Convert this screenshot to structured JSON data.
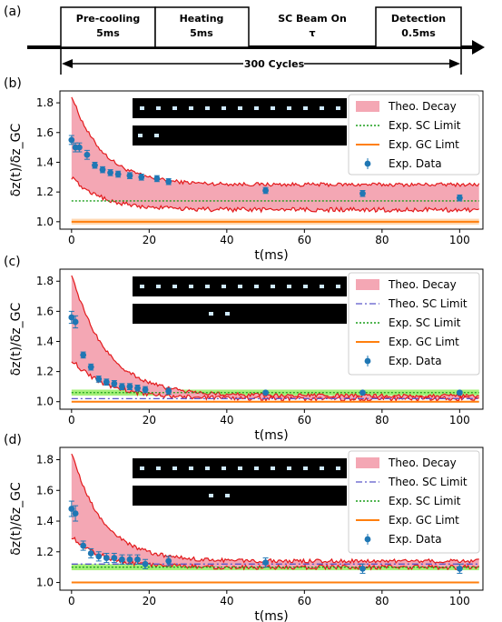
{
  "timeline": {
    "panel_label": "(a)",
    "stages": [
      {
        "line1": "Pre-cooling",
        "line2": "5ms"
      },
      {
        "line1": "Heating",
        "line2": "5ms"
      },
      {
        "line1": "SC Beam On",
        "line2": "τ"
      },
      {
        "line1": "Detection",
        "line2": "0.5ms"
      }
    ],
    "cycles_label": "300 Cycles"
  },
  "chart_data": [
    {
      "type": "scatter",
      "panel_label": "(b)",
      "xlabel": "t(ms)",
      "ylabel": "δz(t)/δz_GC",
      "xlim": [
        -3,
        106
      ],
      "ylim": [
        0.95,
        1.88
      ],
      "xticks": [
        0,
        20,
        40,
        60,
        80,
        100
      ],
      "yticks": [
        1.0,
        1.2,
        1.4,
        1.6,
        1.8
      ],
      "legend": [
        "Theo. Decay",
        "Exp. SC Limit",
        "Exp. GC Limt",
        "Exp. Data"
      ],
      "legend_position": "top-right",
      "data": {
        "x": [
          0,
          1,
          2,
          4,
          6,
          8,
          10,
          12,
          15,
          18,
          22,
          25,
          50,
          75,
          100
        ],
        "y": [
          1.55,
          1.5,
          1.5,
          1.45,
          1.38,
          1.35,
          1.33,
          1.32,
          1.31,
          1.3,
          1.29,
          1.27,
          1.21,
          1.19,
          1.16
        ],
        "err": [
          0.03,
          0.03,
          0.03,
          0.03,
          0.02,
          0.02,
          0.02,
          0.02,
          0.02,
          0.02,
          0.02,
          0.02,
          0.02,
          0.02,
          0.02
        ]
      },
      "decay_band": {
        "upper_start": 1.85,
        "upper_end": 1.25,
        "lower_start": 1.3,
        "lower_end": 1.08,
        "tau": 8
      },
      "sc_limit_exp": 1.14,
      "gc_limit_exp": 1.0,
      "gc_band": [
        0.98,
        1.02
      ]
    },
    {
      "type": "scatter",
      "panel_label": "(c)",
      "xlabel": "t(ms)",
      "ylabel": "δz(t)/δz_GC",
      "xlim": [
        -3,
        106
      ],
      "ylim": [
        0.95,
        1.88
      ],
      "xticks": [
        0,
        20,
        40,
        60,
        80,
        100
      ],
      "yticks": [
        1.0,
        1.2,
        1.4,
        1.6,
        1.8
      ],
      "legend": [
        "Theo. Decay",
        "Theo. SC Limit",
        "Exp. SC Limit",
        "Exp. GC Limt",
        "Exp. Data"
      ],
      "legend_position": "top-right",
      "data": {
        "x": [
          0,
          1,
          3,
          5,
          7,
          9,
          11,
          13,
          15,
          17,
          19,
          25,
          50,
          75,
          100
        ],
        "y": [
          1.56,
          1.53,
          1.31,
          1.23,
          1.15,
          1.13,
          1.12,
          1.1,
          1.1,
          1.09,
          1.08,
          1.07,
          1.06,
          1.06,
          1.06
        ],
        "err": [
          0.04,
          0.04,
          0.02,
          0.02,
          0.02,
          0.02,
          0.02,
          0.02,
          0.02,
          0.02,
          0.02,
          0.02,
          0.01,
          0.01,
          0.01
        ]
      },
      "decay_band": {
        "upper_start": 1.85,
        "upper_end": 1.04,
        "lower_start": 1.28,
        "lower_end": 1.02,
        "tau": 9
      },
      "sc_limit_theo": 1.02,
      "sc_limit_exp": 1.06,
      "sc_band": [
        1.04,
        1.08
      ],
      "gc_limit_exp": 1.0
    },
    {
      "type": "scatter",
      "panel_label": "(d)",
      "xlabel": "t(ms)",
      "ylabel": "δz(t)/δz_GC",
      "xlim": [
        -3,
        106
      ],
      "ylim": [
        0.95,
        1.88
      ],
      "xticks": [
        0,
        20,
        40,
        60,
        80,
        100
      ],
      "yticks": [
        1.0,
        1.2,
        1.4,
        1.6,
        1.8
      ],
      "legend": [
        "Theo. Decay",
        "Theo. SC Limit",
        "Exp. SC Limit",
        "Exp. GC Limt",
        "Exp. Data"
      ],
      "legend_position": "top-right",
      "data": {
        "x": [
          0,
          1,
          3,
          5,
          7,
          9,
          11,
          13,
          15,
          17,
          19,
          25,
          50,
          75,
          100
        ],
        "y": [
          1.48,
          1.45,
          1.24,
          1.19,
          1.17,
          1.16,
          1.16,
          1.15,
          1.15,
          1.15,
          1.12,
          1.14,
          1.13,
          1.09,
          1.09
        ],
        "err": [
          0.05,
          0.05,
          0.03,
          0.03,
          0.03,
          0.03,
          0.03,
          0.03,
          0.03,
          0.03,
          0.03,
          0.03,
          0.03,
          0.03,
          0.03
        ]
      },
      "decay_band": {
        "upper_start": 1.85,
        "upper_end": 1.14,
        "lower_start": 1.3,
        "lower_end": 1.1,
        "tau": 8
      },
      "sc_limit_theo": 1.12,
      "sc_limit_exp": 1.1,
      "sc_band": [
        1.08,
        1.12
      ],
      "gc_limit_exp": 1.0
    }
  ],
  "colors": {
    "decay_fill": "#f4a7b4",
    "decay_line": "#e31a1c",
    "sc_exp": "#1a9e1a",
    "sc_band": "#a6f07a",
    "gc": "#ff7f0e",
    "sc_theo": "#5b57c9",
    "data": "#1f77b4"
  }
}
